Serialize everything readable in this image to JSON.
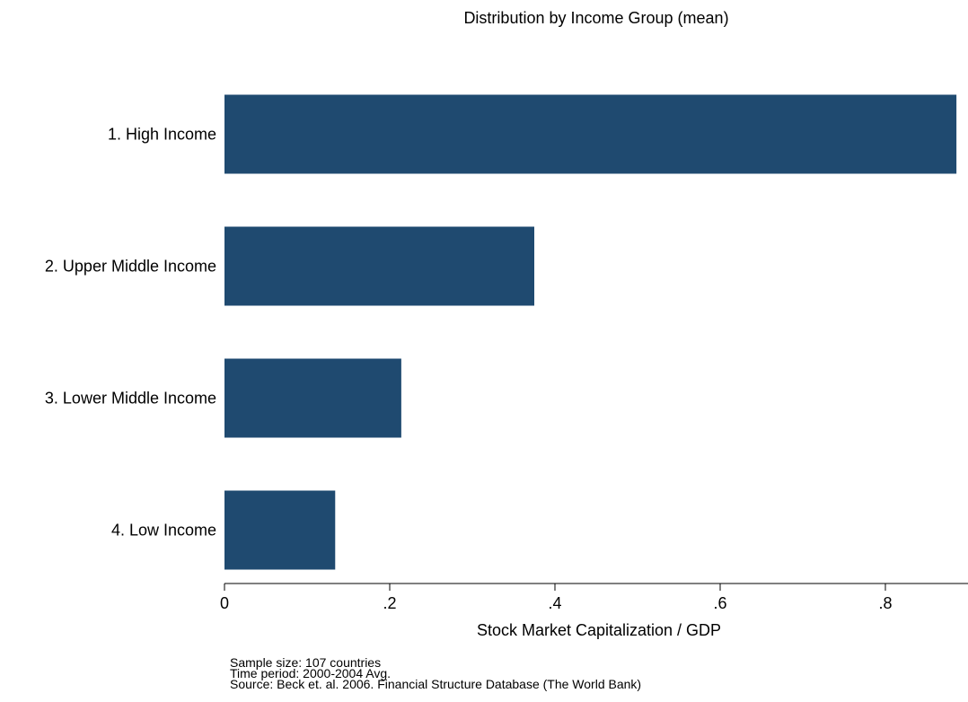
{
  "chart_data": {
    "type": "bar",
    "orientation": "horizontal",
    "title": "Distribution by Income Group (mean)",
    "xlabel": "Stock Market Capitalization / GDP",
    "ylabel": "",
    "categories": [
      "1. High Income",
      "2. Upper Middle Income",
      "3. Lower Middle Income",
      "4. Low Income"
    ],
    "values": [
      0.886,
      0.375,
      0.214,
      0.134
    ],
    "xlim": [
      0,
      0.9
    ],
    "xticks": [
      0,
      0.2,
      0.4,
      0.6,
      0.8
    ],
    "xtick_labels": [
      "0",
      ".2",
      ".4",
      ".6",
      ".8"
    ],
    "grid": false,
    "bar_color": "#1f4a70"
  },
  "notes": [
    "Sample size: 107 countries",
    "Time period: 2000-2004 Avg.",
    "Source: Beck et. al. 2006. Financial Structure Database (The World Bank)"
  ]
}
